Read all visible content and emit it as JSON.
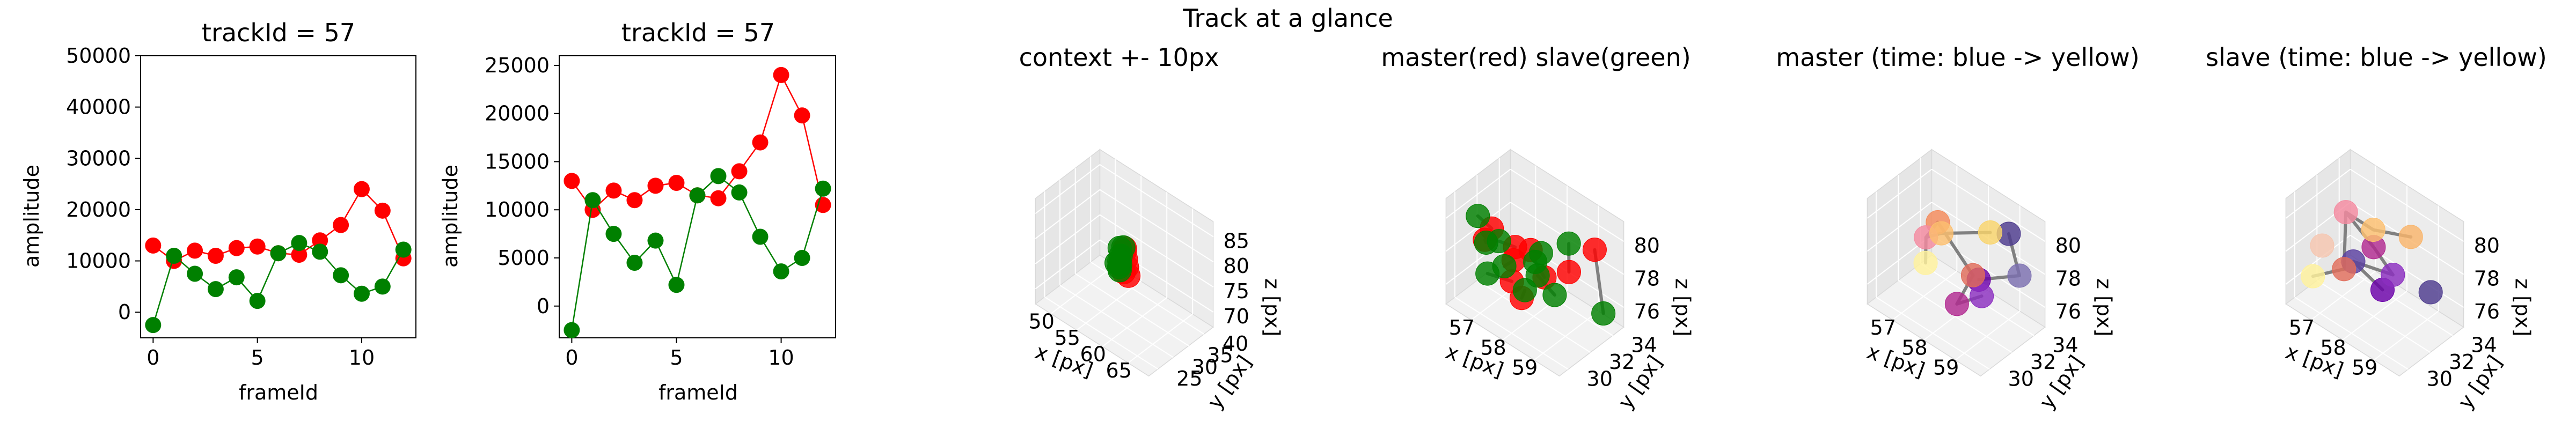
{
  "figure": {
    "suptitle": "Track at a glance"
  },
  "colors": {
    "master": "#ff0000",
    "slave": "#008000",
    "connector": "#808080"
  },
  "chart_data": [
    {
      "type": "line",
      "title": "trackId = 57",
      "xlabel": "frameId",
      "ylabel": "amplitude",
      "xlim": [
        -0.6,
        12.6
      ],
      "ylim": [
        -5000,
        50000
      ],
      "xticks": [
        0,
        5,
        10
      ],
      "yticks": [
        0,
        10000,
        20000,
        30000,
        40000,
        50000
      ],
      "x": [
        0,
        1,
        2,
        3,
        4,
        5,
        6,
        7,
        8,
        9,
        10,
        11,
        12
      ],
      "series": [
        {
          "color": "#ff0000",
          "values": [
            13000,
            10000,
            12000,
            11000,
            12500,
            12800,
            11500,
            11200,
            14000,
            17000,
            24000,
            19800,
            10500
          ]
        },
        {
          "color": "#008000",
          "values": [
            -2500,
            11000,
            7500,
            4500,
            6800,
            2200,
            11500,
            13500,
            11800,
            7200,
            3600,
            5000,
            12200
          ]
        }
      ]
    },
    {
      "type": "line",
      "title": "trackId = 57",
      "xlabel": "frameId",
      "ylabel": "amplitude",
      "xlim": [
        -0.6,
        12.6
      ],
      "ylim": [
        -3300,
        26000
      ],
      "xticks": [
        0,
        5,
        10
      ],
      "yticks": [
        0,
        5000,
        10000,
        15000,
        20000,
        25000
      ],
      "x": [
        0,
        1,
        2,
        3,
        4,
        5,
        6,
        7,
        8,
        9,
        10,
        11,
        12
      ],
      "series": [
        {
          "color": "#ff0000",
          "values": [
            13000,
            10000,
            12000,
            11000,
            12500,
            12800,
            11500,
            11200,
            14000,
            17000,
            24000,
            19800,
            10500
          ]
        },
        {
          "color": "#008000",
          "values": [
            -2500,
            11000,
            7500,
            4500,
            6800,
            2200,
            11500,
            13500,
            11800,
            7200,
            3600,
            5000,
            12200
          ]
        }
      ]
    },
    {
      "type": "scatter3d",
      "title": "context +- 10px",
      "xlabel": "x [px]",
      "ylabel": "y [px]",
      "zlabel": "z [px]",
      "xticks": [
        50,
        55,
        60,
        65
      ],
      "yticks": [
        25,
        30,
        35,
        40
      ],
      "zticks": [
        70,
        75,
        80,
        85
      ],
      "xlim": [
        47,
        69
      ],
      "ylim": [
        22,
        43
      ],
      "zlim": [
        67,
        88
      ],
      "series": [
        {
          "color": "#ff0000",
          "points": [
            [
              58,
              33,
              78
            ],
            [
              58.5,
              32.5,
              77
            ],
            [
              57.5,
              33.5,
              79
            ],
            [
              58.2,
              32,
              76
            ],
            [
              57.8,
              33,
              80
            ],
            [
              58.5,
              33,
              75
            ]
          ]
        },
        {
          "color": "#008000",
          "points": [
            [
              57,
              33,
              78
            ],
            [
              57.5,
              32,
              77
            ],
            [
              56.5,
              33.5,
              79
            ],
            [
              57,
              32.5,
              76
            ],
            [
              57.5,
              33,
              80
            ],
            [
              56.8,
              33,
              75
            ],
            [
              57.2,
              32.2,
              77.5
            ],
            [
              56.5,
              32.5,
              76.5
            ]
          ]
        }
      ],
      "connectors": [
        [
          [
            57,
            33,
            78
          ],
          [
            58,
            33,
            78
          ]
        ],
        [
          [
            57.5,
            32,
            77
          ],
          [
            58.5,
            32.5,
            77
          ]
        ],
        [
          [
            56.5,
            33.5,
            79
          ],
          [
            57.5,
            33.5,
            79
          ]
        ]
      ]
    },
    {
      "type": "scatter3d",
      "title": "master(red) slave(green)",
      "xlabel": "x [px]",
      "ylabel": "y [px]",
      "zlabel": "z [px]",
      "xticks": [
        57,
        58,
        59
      ],
      "yticks": [
        30,
        32,
        34
      ],
      "zticks": [
        76,
        78,
        80
      ],
      "xlim": [
        56.2,
        59.8
      ],
      "ylim": [
        29.2,
        35.0
      ],
      "zlim": [
        74.8,
        81.2
      ],
      "series": [
        {
          "color": "#ff0000",
          "points": [
            [
              57.3,
              30.2,
              80.2
            ],
            [
              57.9,
              30.6,
              79.6
            ],
            [
              58.5,
              30.3,
              80.3
            ],
            [
              56.8,
              31.0,
              78.5
            ],
            [
              57.5,
              31.6,
              77.8
            ],
            [
              58.2,
              32.4,
              77.2
            ],
            [
              58.8,
              32.9,
              78.0
            ],
            [
              59.3,
              33.8,
              79.5
            ],
            [
              57.9,
              31.2,
              76.2
            ],
            [
              57.2,
              32.3,
              75.8
            ]
          ]
        },
        {
          "color": "#008000",
          "points": [
            [
              57.0,
              29.8,
              80.8
            ],
            [
              57.6,
              30.0,
              79.9
            ],
            [
              56.7,
              31.4,
              78.0
            ],
            [
              57.1,
              31.9,
              76.8
            ],
            [
              57.8,
              32.7,
              77.5
            ],
            [
              58.3,
              31.8,
              79.1
            ],
            [
              58.9,
              32.6,
              80.0
            ],
            [
              56.6,
              31.8,
              75.8
            ],
            [
              57.4,
              32.9,
              75.2
            ],
            [
              58.1,
              33.6,
              75.4
            ],
            [
              57.7,
              33.2,
              76.3
            ],
            [
              59.4,
              34.3,
              75.5
            ]
          ]
        }
      ],
      "connectors": [
        [
          [
            57.0,
            29.8,
            80.8
          ],
          [
            57.3,
            30.2,
            80.2
          ]
        ],
        [
          [
            57.6,
            30.0,
            79.9
          ],
          [
            57.9,
            30.6,
            79.6
          ]
        ],
        [
          [
            56.7,
            31.4,
            78.0
          ],
          [
            56.8,
            31.0,
            78.5
          ]
        ],
        [
          [
            57.1,
            31.9,
            76.8
          ],
          [
            57.5,
            31.6,
            77.8
          ]
        ],
        [
          [
            57.8,
            32.7,
            77.5
          ],
          [
            58.2,
            32.4,
            77.2
          ]
        ],
        [
          [
            58.3,
            31.8,
            79.1
          ],
          [
            58.5,
            30.3,
            80.3
          ]
        ],
        [
          [
            58.9,
            32.6,
            80.0
          ],
          [
            58.8,
            32.9,
            78.0
          ]
        ],
        [
          [
            56.6,
            31.8,
            75.8
          ],
          [
            57.2,
            32.3,
            75.8
          ]
        ],
        [
          [
            57.4,
            32.9,
            75.2
          ],
          [
            57.9,
            31.2,
            76.2
          ]
        ],
        [
          [
            59.4,
            34.3,
            75.5
          ],
          [
            59.3,
            33.8,
            79.5
          ]
        ],
        [
          [
            57.7,
            33.2,
            76.3
          ],
          [
            58.1,
            33.6,
            75.4
          ]
        ]
      ]
    },
    {
      "type": "scatter3d",
      "title": "master (time: blue -> yellow)",
      "xlabel": "x [px]",
      "ylabel": "y [px]",
      "zlabel": "z [px]",
      "xticks": [
        57,
        58,
        59
      ],
      "yticks": [
        30,
        32,
        34
      ],
      "zticks": [
        76,
        78,
        80
      ],
      "xlim": [
        56.2,
        59.8
      ],
      "ylim": [
        29.2,
        35.0
      ],
      "zlim": [
        74.8,
        81.2
      ],
      "colormap": [
        "#440154",
        "#3b528b",
        "#21918c",
        "#5ec962",
        "#fde725"
      ],
      "series": [
        {
          "points": [
            [
              58.4,
              33.0,
              77.0
            ],
            [
              59.2,
              34.4,
              77.5
            ],
            [
              58.6,
              32.7,
              76.4
            ],
            [
              59.0,
              34.0,
              80.0
            ],
            [
              58.2,
              31.6,
              76.0
            ],
            [
              58.5,
              32.2,
              77.8
            ],
            [
              57.7,
              31.3,
              80.5
            ],
            [
              57.5,
              30.8,
              79.6
            ],
            [
              58.2,
              30.2,
              81.0
            ],
            [
              57.1,
              31.9,
              77.0
            ],
            [
              58.8,
              32.9,
              80.4
            ]
          ],
          "colors": [
            "#6a00a8",
            "#7b6fb0",
            "#8b2ec0",
            "#4d3b8e",
            "#b12a90",
            "#e06c5a",
            "#f48a5a",
            "#f48aa0",
            "#fdbf6f",
            "#fff29c",
            "#f9d46b"
          ]
        }
      ],
      "connectors": [
        [
          [
            58.4,
            33.0,
            77.0
          ],
          [
            59.2,
            34.4,
            77.5
          ]
        ],
        [
          [
            59.2,
            34.4,
            77.5
          ],
          [
            59.0,
            34.0,
            80.0
          ]
        ],
        [
          [
            58.6,
            32.7,
            76.4
          ],
          [
            58.2,
            31.6,
            76.0
          ]
        ],
        [
          [
            58.2,
            31.6,
            76.0
          ],
          [
            58.5,
            32.2,
            77.8
          ]
        ],
        [
          [
            58.5,
            32.2,
            77.8
          ],
          [
            57.7,
            31.3,
            80.5
          ]
        ],
        [
          [
            57.7,
            31.3,
            80.5
          ],
          [
            57.5,
            30.8,
            79.6
          ]
        ],
        [
          [
            57.5,
            30.8,
            79.6
          ],
          [
            58.2,
            30.2,
            81.0
          ]
        ],
        [
          [
            58.2,
            30.2,
            81.0
          ],
          [
            58.8,
            32.9,
            80.4
          ]
        ],
        [
          [
            57.5,
            30.8,
            79.6
          ],
          [
            57.1,
            31.9,
            77.0
          ]
        ]
      ]
    },
    {
      "type": "scatter3d",
      "title": "slave (time: blue -> yellow)",
      "xlabel": "x [px]",
      "ylabel": "y [px]",
      "zlabel": "z [px]",
      "xticks": [
        57,
        58,
        59
      ],
      "yticks": [
        30,
        32,
        34
      ],
      "zticks": [
        76,
        78,
        80
      ],
      "xlim": [
        56.2,
        59.8
      ],
      "ylim": [
        29.2,
        35.0
      ],
      "zlim": [
        74.8,
        81.2
      ],
      "series": [
        {
          "points": [
            [
              58.0,
              32.8,
              76.0
            ],
            [
              59.0,
              34.3,
              76.3
            ],
            [
              57.6,
              31.3,
              78.0
            ],
            [
              58.4,
              32.6,
              77.5
            ],
            [
              58.0,
              32.0,
              79.0
            ],
            [
              57.4,
              31.2,
              80.8
            ],
            [
              58.9,
              32.8,
              80.3
            ],
            [
              57.0,
              30.2,
              78.8
            ],
            [
              57.2,
              31.6,
              76.9
            ],
            [
              58.2,
              31.4,
              80.6
            ],
            [
              56.6,
              30.5,
              76.3
            ]
          ],
          "colors": [
            "#6a00a8",
            "#4d3b8e",
            "#5a3fa0",
            "#8b2ec0",
            "#b12a90",
            "#f48aa0",
            "#f9b56b",
            "#f5c6b0",
            "#e06c5a",
            "#fdbf6f",
            "#fff29c"
          ]
        }
      ],
      "connectors": [
        [
          [
            58.0,
            32.8,
            76.0
          ],
          [
            57.6,
            31.3,
            78.0
          ]
        ],
        [
          [
            58.4,
            32.6,
            77.5
          ],
          [
            58.0,
            32.0,
            79.0
          ]
        ],
        [
          [
            58.0,
            32.0,
            79.0
          ],
          [
            57.4,
            31.2,
            80.8
          ]
        ],
        [
          [
            57.4,
            31.2,
            80.8
          ],
          [
            58.2,
            31.4,
            80.6
          ]
        ],
        [
          [
            58.2,
            31.4,
            80.6
          ],
          [
            58.9,
            32.8,
            80.3
          ]
        ],
        [
          [
            57.4,
            31.2,
            80.8
          ],
          [
            57.2,
            31.6,
            76.9
          ]
        ],
        [
          [
            57.2,
            31.6,
            76.9
          ],
          [
            56.6,
            30.5,
            76.3
          ]
        ],
        [
          [
            57.6,
            31.3,
            78.0
          ],
          [
            58.4,
            32.6,
            77.5
          ]
        ]
      ]
    }
  ]
}
